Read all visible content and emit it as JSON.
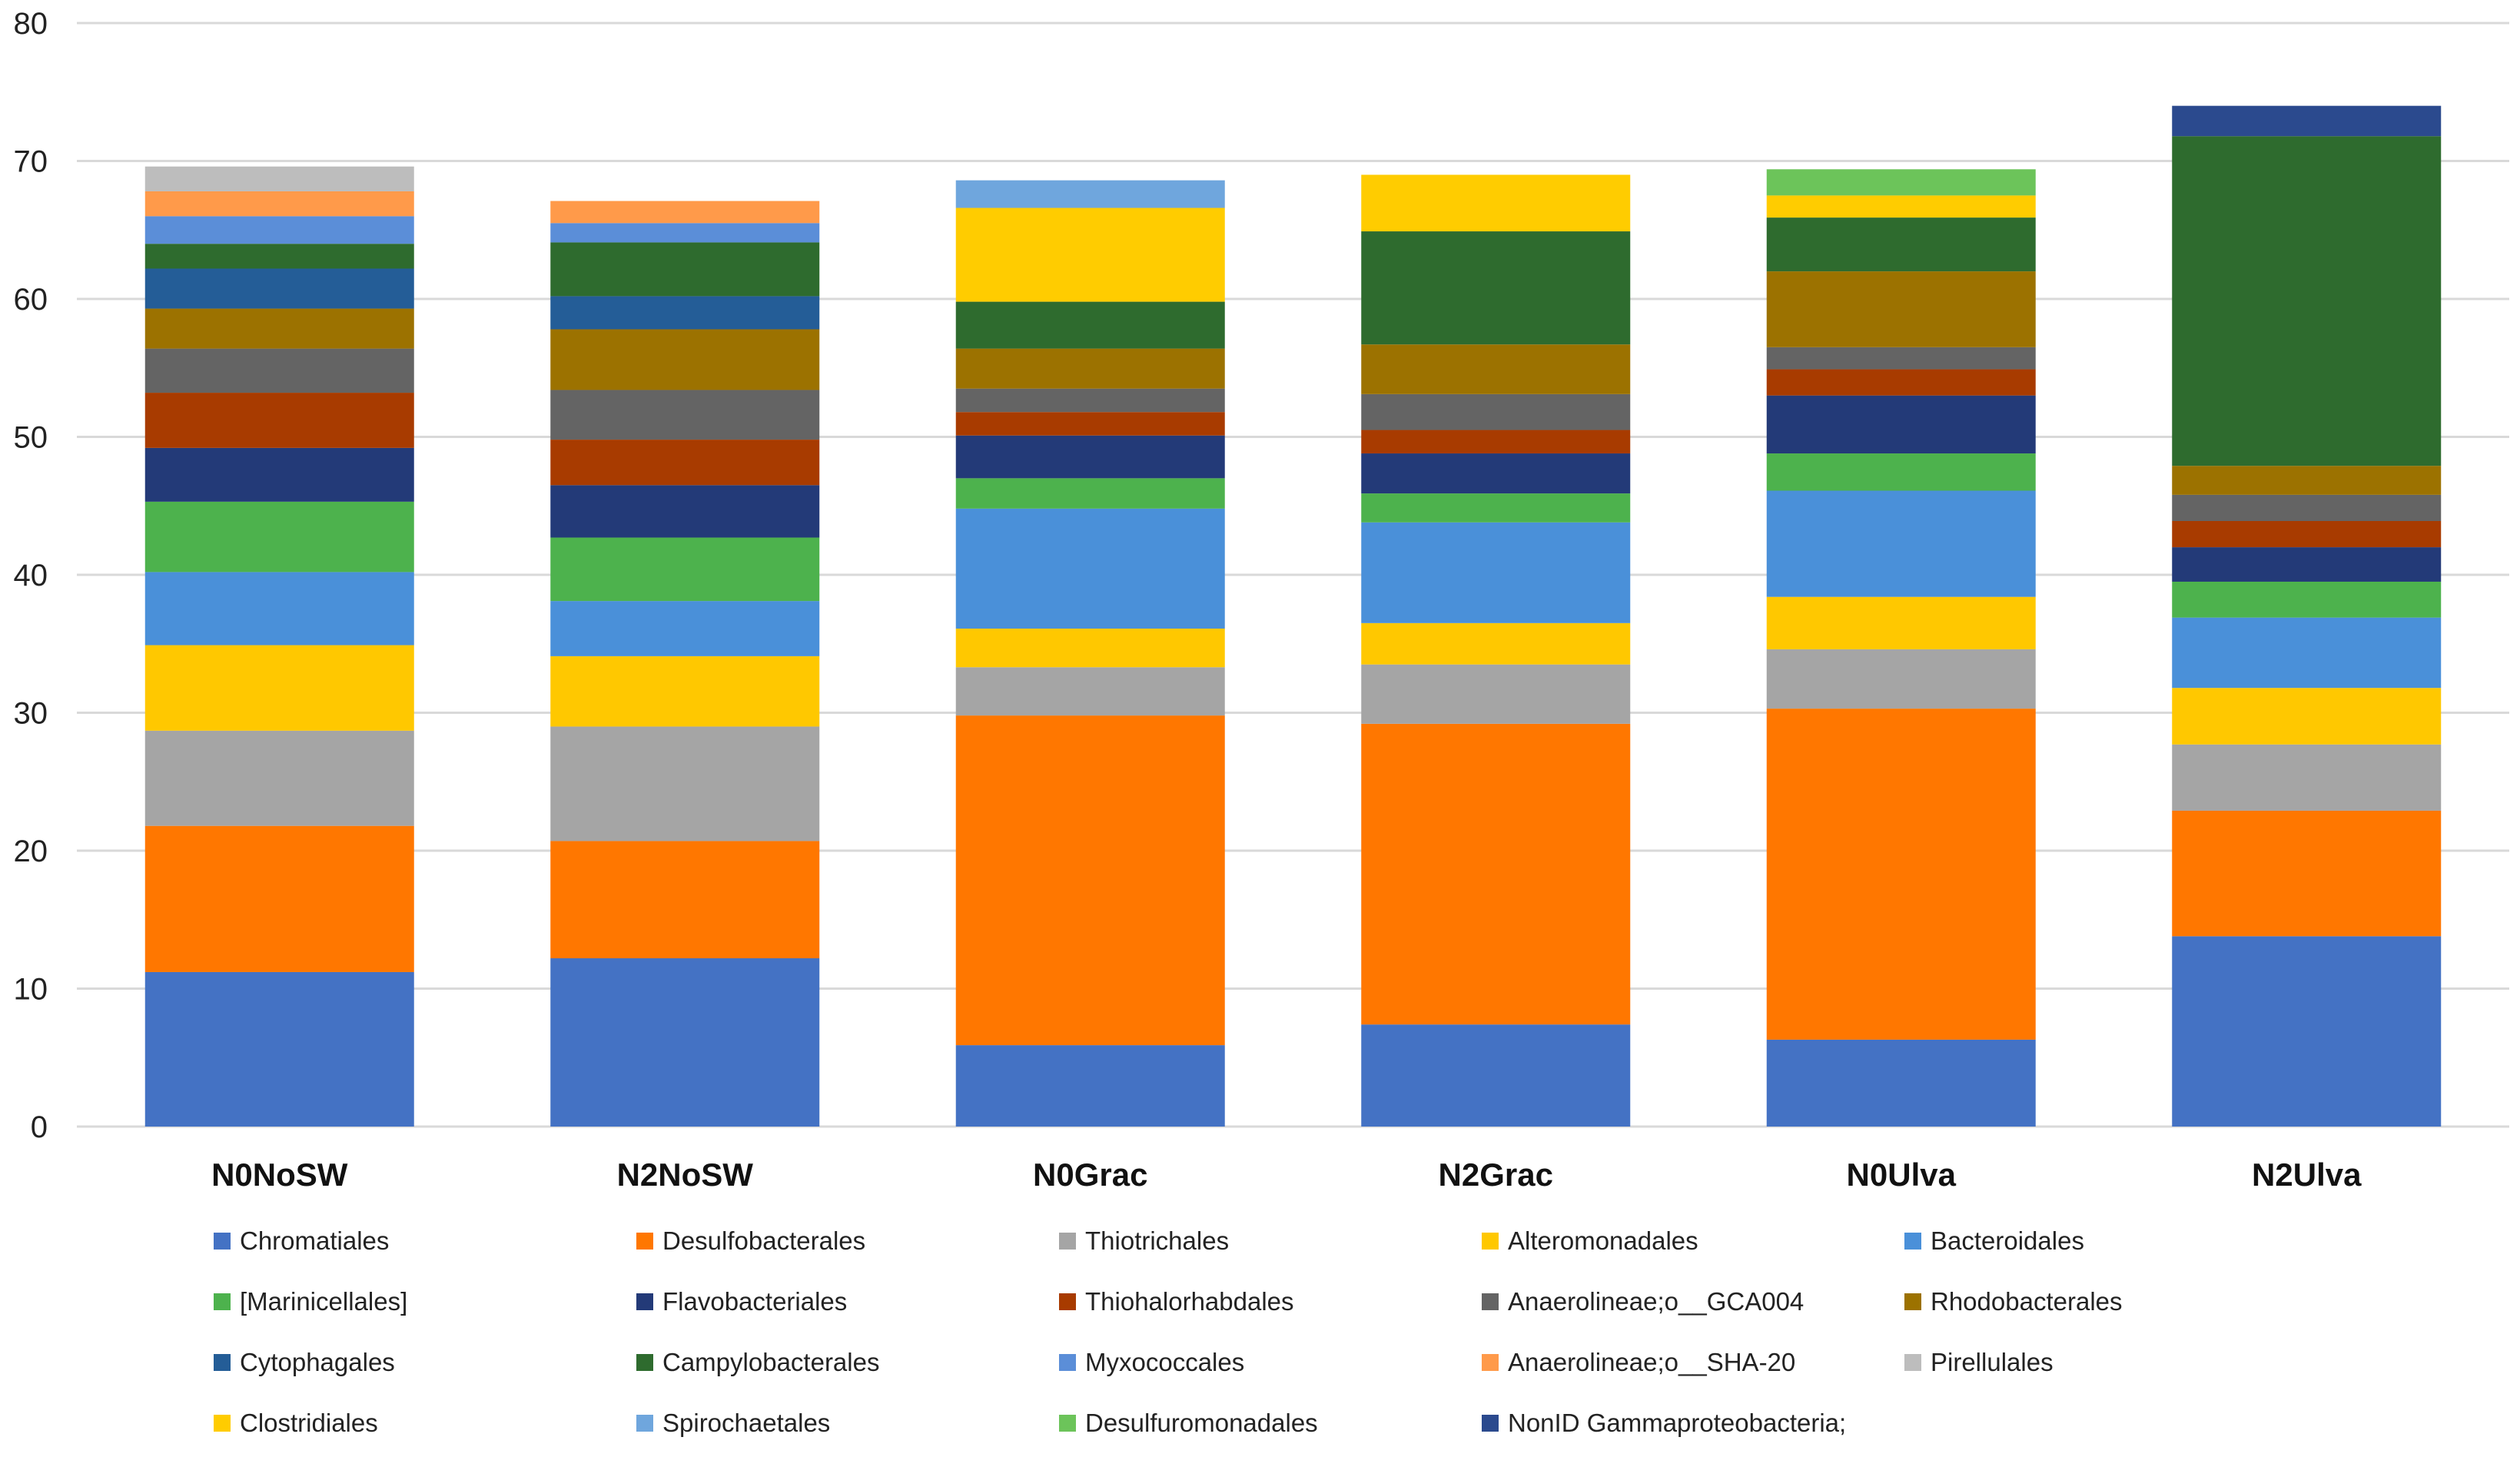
{
  "chart_data": {
    "type": "bar",
    "stacked": true,
    "title": "",
    "xlabel": "",
    "ylabel": "",
    "ylim": [
      0,
      80
    ],
    "yticks": [
      0,
      10,
      20,
      30,
      40,
      50,
      60,
      70,
      80
    ],
    "grid": true,
    "legend_position": "bottom",
    "categories": [
      "N0NoSW",
      "N2NoSW",
      "N0Grac",
      "N2Grac",
      "N0Ulva",
      "N2Ulva"
    ],
    "series": [
      {
        "name": "Chromatiales",
        "color": "#4472C4",
        "values": [
          11.2,
          12.2,
          5.9,
          7.4,
          6.3,
          13.8
        ]
      },
      {
        "name": "Desulfobacterales",
        "color": "#FF7700",
        "values": [
          10.6,
          8.5,
          23.9,
          21.8,
          24.0,
          9.1
        ]
      },
      {
        "name": "Thiotrichales",
        "color": "#A5A5A5",
        "values": [
          6.9,
          8.3,
          3.5,
          4.3,
          4.3,
          4.8
        ]
      },
      {
        "name": "Alteromonadales",
        "color": "#FFC800",
        "values": [
          6.2,
          5.1,
          2.8,
          3.0,
          3.8,
          4.1
        ]
      },
      {
        "name": "Bacteroidales",
        "color": "#4A90D9",
        "values": [
          5.3,
          4.0,
          8.7,
          7.3,
          7.7,
          5.1
        ]
      },
      {
        "name": "[Marinicellales]",
        "color": "#4DB24D",
        "values": [
          5.1,
          4.6,
          2.2,
          2.1,
          2.7,
          2.6
        ]
      },
      {
        "name": "Flavobacteriales",
        "color": "#233A78",
        "values": [
          3.9,
          3.8,
          3.1,
          2.9,
          4.2,
          2.5
        ]
      },
      {
        "name": "Thiohalorhabdales",
        "color": "#A83B00",
        "values": [
          4.0,
          3.3,
          1.7,
          1.7,
          1.9,
          1.9
        ]
      },
      {
        "name": "Anaerolineae;o__GCA004",
        "color": "#646464",
        "values": [
          3.2,
          3.6,
          1.7,
          2.6,
          1.6,
          1.9
        ]
      },
      {
        "name": "Rhodobacterales",
        "color": "#9C7200",
        "values": [
          2.9,
          4.4,
          2.9,
          3.6,
          5.5,
          2.1
        ]
      },
      {
        "name": "Cytophagales",
        "color": "#245D97",
        "values": [
          2.9,
          2.4,
          0,
          0,
          0,
          0
        ]
      },
      {
        "name": "Campylobacterales",
        "color": "#2E6B2E",
        "values": [
          1.8,
          3.9,
          3.4,
          8.2,
          3.9,
          23.9
        ]
      },
      {
        "name": "Myxococcales",
        "color": "#5B8ED8",
        "values": [
          2.0,
          1.4,
          0,
          0,
          0,
          0
        ]
      },
      {
        "name": "Anaerolineae;o__SHA-20",
        "color": "#FF9A4A",
        "values": [
          1.8,
          1.6,
          0,
          0,
          0,
          0
        ]
      },
      {
        "name": "Pirellulales",
        "color": "#BDBDBD",
        "values": [
          1.8,
          0,
          0,
          0,
          0,
          0
        ]
      },
      {
        "name": "Clostridiales",
        "color": "#FFCC00",
        "values": [
          0,
          0,
          6.8,
          4.1,
          1.6,
          0
        ]
      },
      {
        "name": "Spirochaetales",
        "color": "#6FA6DD",
        "values": [
          0,
          0,
          2.0,
          0,
          0,
          0
        ]
      },
      {
        "name": "Desulfuromonadales",
        "color": "#6CC45A",
        "values": [
          0,
          0,
          0,
          0,
          1.9,
          0
        ]
      },
      {
        "name": "NonID Gammaproteobacteria;",
        "color": "#2B4A8E",
        "values": [
          0,
          0,
          0,
          0,
          0,
          2.2
        ]
      }
    ]
  }
}
